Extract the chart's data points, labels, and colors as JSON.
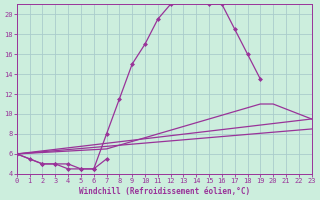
{
  "xlabel": "Windchill (Refroidissement éolien,°C)",
  "bg_color": "#cceedd",
  "line_color": "#993399",
  "grid_color": "#aacccc",
  "xlim": [
    0,
    23
  ],
  "ylim": [
    4,
    21
  ],
  "yticks": [
    4,
    6,
    8,
    10,
    12,
    14,
    16,
    18,
    20
  ],
  "xticks": [
    0,
    1,
    2,
    3,
    4,
    5,
    6,
    7,
    8,
    9,
    10,
    11,
    12,
    13,
    14,
    15,
    16,
    17,
    18,
    19,
    20,
    21,
    22,
    23
  ],
  "curve1_x": [
    0,
    1,
    2,
    3,
    4,
    5,
    6,
    7,
    8,
    9,
    10,
    11,
    12,
    13,
    14,
    15,
    16,
    17,
    18,
    19
  ],
  "curve1_y": [
    6.0,
    5.5,
    5.0,
    5.0,
    5.0,
    4.5,
    4.5,
    8.0,
    11.5,
    15.0,
    17.0,
    19.5,
    21.0,
    21.5,
    21.5,
    21.0,
    21.0,
    18.5,
    16.0,
    13.5
  ],
  "curve2_x": [
    2,
    3,
    4,
    5,
    6,
    7
  ],
  "curve2_y": [
    5.0,
    5.0,
    4.5,
    4.5,
    4.5,
    5.5
  ],
  "curve3_x": [
    0,
    23
  ],
  "curve3_y": [
    6.0,
    9.5
  ],
  "curve4_x": [
    0,
    23
  ],
  "curve4_y": [
    6.0,
    8.5
  ],
  "curve5_x": [
    0,
    7,
    19,
    20,
    21,
    23
  ],
  "curve5_y": [
    6.0,
    6.5,
    11.0,
    11.0,
    10.5,
    9.5
  ]
}
